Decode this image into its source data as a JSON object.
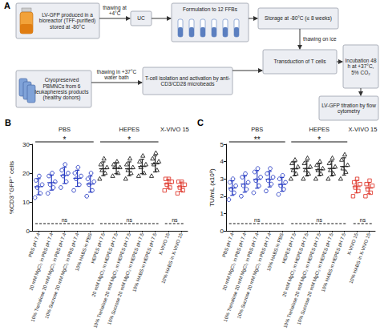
{
  "diagram": {
    "panel": "A",
    "nodes": [
      {
        "label": "LV-GFP produced in a bioreactor (TFF-purified) stored at -80°C"
      },
      {
        "label": "UC"
      },
      {
        "label": "Formulation to 12 FFBs"
      },
      {
        "label": "Storage at -80°C (≤ 8 weeks)"
      },
      {
        "label": "Transduction of T cells"
      },
      {
        "label": "Incubation 48 h at +37°C, 5% CO₂"
      },
      {
        "label": "LV-GFP titration by flow cytometry"
      },
      {
        "label": "Cryopreserved PBMNCs from 6 leukapheresis products (healthy donors)"
      },
      {
        "label": "T-cell isolation and activation by anti-CD3/CD28 microbeads"
      }
    ],
    "edges": [
      {
        "from": 0,
        "to": 1,
        "label": "thawing at +4°C"
      },
      {
        "from": 1,
        "to": 2
      },
      {
        "from": 2,
        "to": 3
      },
      {
        "from": 3,
        "to": 4,
        "label": "thawing on ice"
      },
      {
        "from": 4,
        "to": 5
      },
      {
        "from": 5,
        "to": 6
      },
      {
        "from": 7,
        "to": 8,
        "label": "thawing in +37°C water bath"
      },
      {
        "from": 8,
        "to": 4
      }
    ]
  },
  "chart_data": [
    {
      "type": "scatter",
      "panel": "B",
      "ylabel": "%CD3⁺GFP⁺ cells",
      "categories": [
        "PBS pH 7.4",
        "20 mM MgCl₂ in PBS pH 7.4",
        "10% Trehalose 20 mM MgCl₂ in PBS pH 7.4",
        "10% Sucrose 20 mM MgCl₂ in PBS pH 7.4",
        "10% HABS in PBS",
        "HEPES pH 7.5",
        "20 mM MgCl₂ in HEPES pH 7.5",
        "10% Trehalose 20 mM MgCl₂ in HEPES pH 7.5",
        "10% Sucrose 20 mM MgCl₂ in HEPES pH 7.5",
        "10% HABS in HEPES pH 7.5",
        "X-VIVO 15",
        "10% HABS in X-VIVO 15"
      ],
      "ylim": [
        0,
        30
      ],
      "yticks": [
        0,
        10,
        20,
        30
      ],
      "grid": false,
      "series": [
        {
          "name": "PBS",
          "color": "#2b3fc4",
          "marker": "circle",
          "values": [
            [
              11.5,
              13,
              15,
              16,
              17.5,
              19
            ],
            [
              13,
              15,
              16,
              17,
              19,
              20
            ],
            [
              15,
              17,
              19,
              20,
              21,
              23
            ],
            [
              14,
              16,
              18,
              19,
              20,
              22
            ],
            [
              12,
              14,
              16,
              17,
              18,
              20
            ],
            null,
            null,
            null,
            null,
            null,
            null,
            null
          ],
          "mean": [
            15.3,
            16.7,
            19.2,
            18.2,
            16.2,
            null,
            null,
            null,
            null,
            null,
            null,
            null
          ],
          "sd": [
            2.8,
            2.6,
            2.8,
            2.8,
            2.8,
            null,
            null,
            null,
            null,
            null,
            null,
            null
          ]
        },
        {
          "name": "HEPES",
          "color": "#222222",
          "marker": "triangle",
          "values": [
            null,
            null,
            null,
            null,
            null,
            [
              18,
              20,
              21,
              22,
              23,
              25
            ],
            [
              19,
              20,
              22,
              22,
              23,
              24
            ],
            [
              18,
              20,
              21,
              22,
              23,
              25
            ],
            [
              19,
              20,
              22,
              23,
              24,
              26
            ],
            [
              19,
              21,
              23,
              24,
              25,
              27
            ],
            null,
            null
          ],
          "mean": [
            null,
            null,
            null,
            null,
            null,
            21.5,
            21.7,
            21.5,
            22.3,
            23.2,
            null,
            null
          ],
          "sd": [
            null,
            null,
            null,
            null,
            null,
            2.4,
            1.9,
            2.4,
            2.5,
            2.8,
            null,
            null
          ]
        },
        {
          "name": "X-VIVO 15",
          "color": "#e03c31",
          "marker": "square",
          "values": [
            null,
            null,
            null,
            null,
            null,
            null,
            null,
            null,
            null,
            null,
            [
              14,
              15,
              16,
              17,
              18,
              18
            ],
            [
              13,
              14,
              15,
              16,
              17,
              17
            ]
          ],
          "mean": [
            null,
            null,
            null,
            null,
            null,
            null,
            null,
            null,
            null,
            null,
            16.3,
            15.3
          ],
          "sd": [
            null,
            null,
            null,
            null,
            null,
            null,
            null,
            null,
            null,
            null,
            1.6,
            1.6
          ]
        }
      ],
      "comparisons": [
        {
          "label": "*",
          "span": [
            0,
            4
          ],
          "line_style": "solid"
        },
        {
          "label": "*",
          "span": [
            5,
            9
          ],
          "line_style": "solid"
        },
        {
          "label": "ns",
          "span": [
            0,
            4
          ],
          "line_style": "dashed"
        },
        {
          "label": "ns",
          "span": [
            5,
            9
          ],
          "line_style": "dashed"
        },
        {
          "label": "ns",
          "span": [
            10,
            11
          ],
          "line_style": "dashed"
        }
      ]
    },
    {
      "type": "scatter",
      "panel": "C",
      "ylabel": "TU/mL (x10⁸)",
      "categories": [
        "PBS pH 7.4",
        "20 mM MgCl₂ in PBS pH 7.4",
        "10% Trehalose 20 mM MgCl₂ in PBS pH 7.4",
        "10% Sucrose 20 mM MgCl₂ in PBS pH 7.4",
        "10% HABS in PBS",
        "HEPES pH 7.5",
        "20 mM MgCl₂ in HEPES pH 7.5",
        "10% Trehalose 20 mM MgCl₂ in HEPES pH 7.5",
        "10% Sucrose 20 mM MgCl₂ in HEPES pH 7.5",
        "10% HABS in HEPES pH 7.5",
        "X-VIVO 15",
        "10% HABS in X-VIVO 15"
      ],
      "ylim": [
        0,
        5
      ],
      "yticks": [
        0,
        1,
        2,
        3,
        4,
        5
      ],
      "grid": false,
      "series": [
        {
          "name": "PBS",
          "color": "#2b3fc4",
          "marker": "circle",
          "values": [
            [
              1.8,
              2.2,
              2.4,
              2.6,
              2.8,
              3.0
            ],
            [
              2.0,
              2.4,
              2.6,
              2.8,
              3.1,
              3.3
            ],
            [
              2.2,
              2.6,
              2.9,
              3.1,
              3.4,
              3.6
            ],
            [
              2.3,
              2.7,
              2.9,
              3.1,
              3.3,
              3.6
            ],
            [
              2.1,
              2.4,
              2.6,
              2.8,
              3.0,
              3.2
            ],
            null,
            null,
            null,
            null,
            null,
            null,
            null
          ],
          "mean": [
            2.47,
            2.7,
            2.97,
            2.98,
            2.68,
            null,
            null,
            null,
            null,
            null,
            null,
            null
          ],
          "sd": [
            0.42,
            0.47,
            0.51,
            0.45,
            0.4,
            null,
            null,
            null,
            null,
            null,
            null,
            null
          ]
        },
        {
          "name": "HEPES",
          "color": "#222222",
          "marker": "triangle",
          "values": [
            null,
            null,
            null,
            null,
            null,
            [
              3.0,
              3.3,
              3.5,
              3.7,
              3.9,
              4.1
            ],
            [
              3.0,
              3.3,
              3.5,
              3.7,
              3.9,
              4.2
            ],
            [
              3.0,
              3.3,
              3.5,
              3.6,
              3.8,
              4.0
            ],
            [
              3.0,
              3.3,
              3.5,
              3.7,
              3.9,
              4.2
            ],
            [
              3.0,
              3.4,
              3.6,
              3.8,
              4.1,
              4.4
            ],
            null,
            null
          ],
          "mean": [
            null,
            null,
            null,
            null,
            null,
            3.58,
            3.6,
            3.53,
            3.6,
            3.72,
            null,
            null
          ],
          "sd": [
            null,
            null,
            null,
            null,
            null,
            0.4,
            0.43,
            0.35,
            0.43,
            0.5,
            null,
            null
          ]
        },
        {
          "name": "X-VIVO 15",
          "color": "#e03c31",
          "marker": "square",
          "values": [
            null,
            null,
            null,
            null,
            null,
            null,
            null,
            null,
            null,
            null,
            [
              2.0,
              2.3,
              2.5,
              2.7,
              2.8,
              3.0
            ],
            [
              2.0,
              2.2,
              2.4,
              2.6,
              2.7,
              2.9
            ]
          ],
          "mean": [
            null,
            null,
            null,
            null,
            null,
            null,
            null,
            null,
            null,
            null,
            2.55,
            2.47
          ],
          "sd": [
            null,
            null,
            null,
            null,
            null,
            null,
            null,
            null,
            null,
            null,
            0.36,
            0.33
          ]
        }
      ],
      "comparisons": [
        {
          "label": "**",
          "span": [
            0,
            4
          ],
          "line_style": "solid"
        },
        {
          "label": "*",
          "span": [
            5,
            9
          ],
          "line_style": "solid"
        },
        {
          "label": "ns",
          "span": [
            0,
            4
          ],
          "line_style": "dashed"
        },
        {
          "label": "ns",
          "span": [
            5,
            9
          ],
          "line_style": "dashed"
        },
        {
          "label": "ns",
          "span": [
            10,
            11
          ],
          "line_style": "dashed"
        }
      ]
    }
  ]
}
